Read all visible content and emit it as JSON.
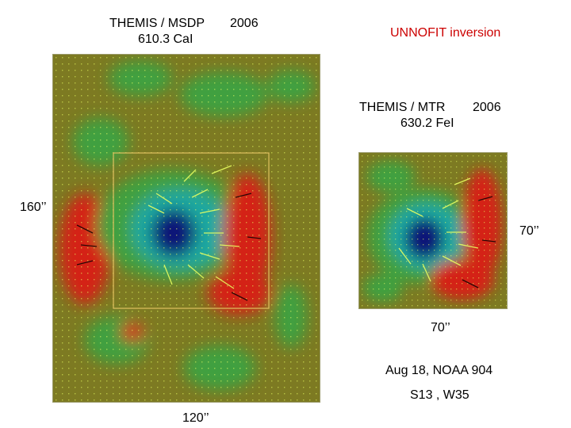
{
  "left_title": {
    "instrument": "THEMIS / MSDP",
    "year": "2006",
    "line": "610.3 CaI"
  },
  "inversion_label": "UNNOFIT inversion",
  "right_title": {
    "instrument": "THEMIS / MTR",
    "year": "2006",
    "line": "630.2 FeI"
  },
  "scales": {
    "left_height": "160’’",
    "left_width": "120’’",
    "right_height": "70’’",
    "right_width": "70’’"
  },
  "observation": {
    "date_region": "Aug 18, NOAA 904",
    "coordinates": "S13 ,  W35"
  },
  "colors": {
    "background_field": "#7d7a22",
    "positive_polarity": "#d42418",
    "negative_core": "#101878",
    "negative_halo": "#1aa8a0",
    "green_field": "#3fa040",
    "vector_arrows": "#e8ff60",
    "box_outline": "#e0c060"
  }
}
